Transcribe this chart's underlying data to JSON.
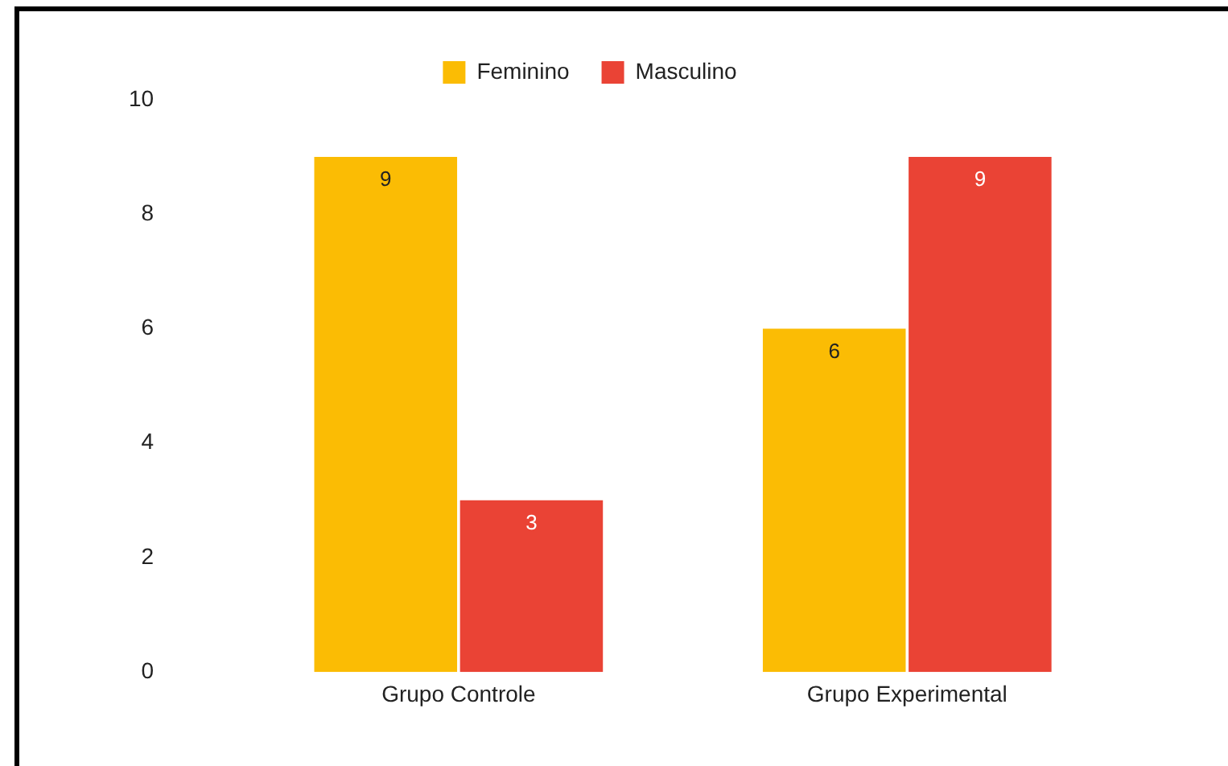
{
  "chart_data": {
    "type": "bar",
    "categories": [
      "Grupo Controle",
      "Grupo Experimental"
    ],
    "series": [
      {
        "name": "Feminino",
        "color": "#fbbc04",
        "values": [
          9,
          6
        ]
      },
      {
        "name": "Masculino",
        "color": "#ea4335",
        "values": [
          3,
          9
        ]
      }
    ],
    "ylim": [
      0,
      10
    ],
    "yticks": [
      0,
      2,
      4,
      6,
      8,
      10
    ],
    "grid": false,
    "legend": "top",
    "data_labels": true
  }
}
